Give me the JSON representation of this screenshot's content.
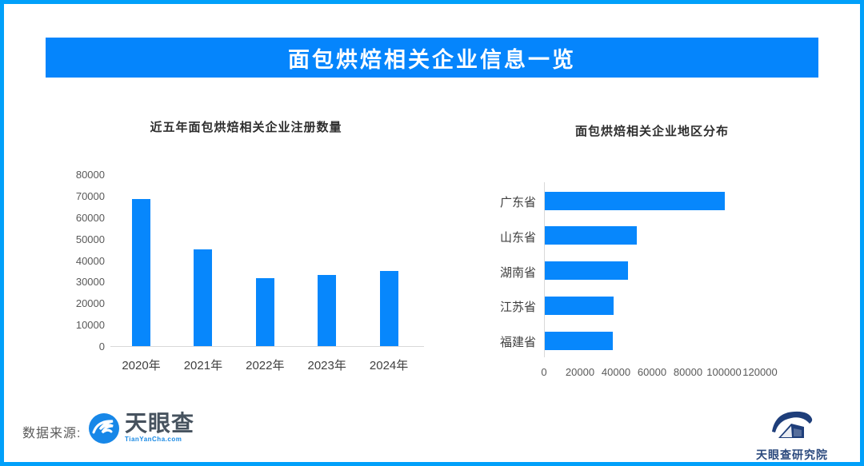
{
  "frame": {
    "border_color": "#01a0fa",
    "background": "#ffffff"
  },
  "banner": {
    "title": "面包烘焙相关企业信息一览",
    "bg_color": "#0585fc",
    "text_color": "#ffffff"
  },
  "chart_data": [
    {
      "type": "bar",
      "title": "近五年面包烘焙相关企业注册数量",
      "categories": [
        "2020年",
        "2021年",
        "2022年",
        "2023年",
        "2024年"
      ],
      "values": [
        68500,
        45000,
        31500,
        33000,
        35000
      ],
      "ylim": [
        0,
        80000
      ],
      "yticks": [
        0,
        10000,
        20000,
        30000,
        40000,
        50000,
        60000,
        70000,
        80000
      ],
      "xlabel": "",
      "ylabel": "",
      "grid": false,
      "legend": "none",
      "bar_color": "#0787fc"
    },
    {
      "type": "bar-horizontal",
      "title": "面包烘焙相关企业地区分布",
      "categories": [
        "广东省",
        "山东省",
        "湖南省",
        "江苏省",
        "福建省"
      ],
      "values": [
        100000,
        51000,
        46000,
        38000,
        37800
      ],
      "xlim": [
        0,
        120000
      ],
      "xticks": [
        0,
        20000,
        40000,
        60000,
        80000,
        100000,
        120000
      ],
      "xlabel": "",
      "ylabel": "",
      "grid": false,
      "legend": "none",
      "bar_color": "#0787fc"
    }
  ],
  "footer": {
    "source_label": "数据来源:",
    "tyc_logo": {
      "name": "天眼查",
      "domain": "TianYanCha.com",
      "icon_color": "#1787e8"
    },
    "institute_logo": {
      "name": "天眼查研究院",
      "icon_color": "#1e3e7a"
    }
  }
}
